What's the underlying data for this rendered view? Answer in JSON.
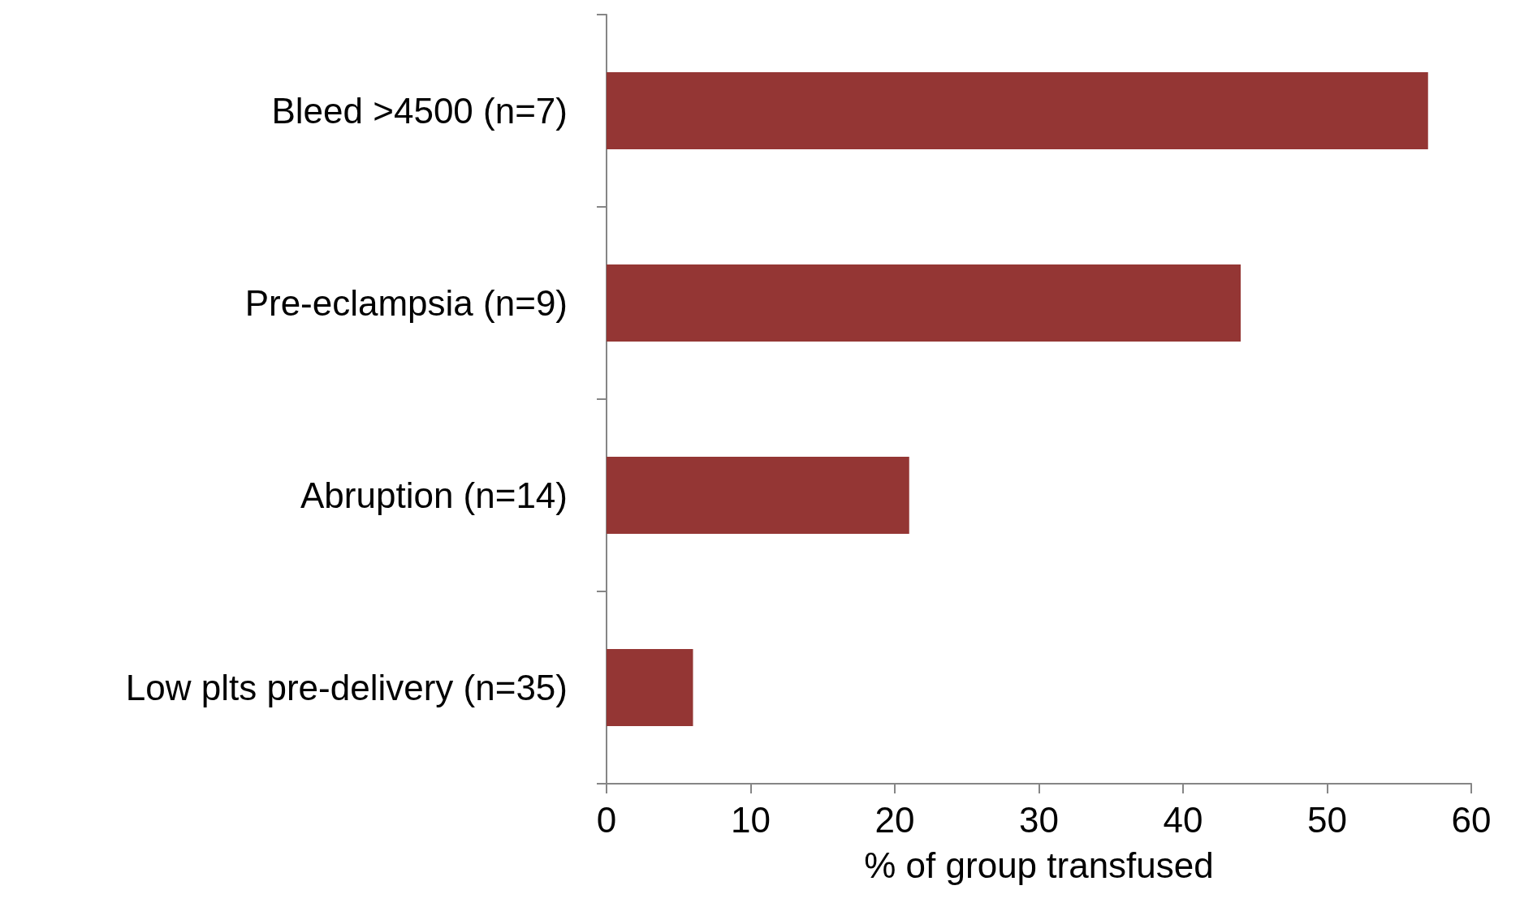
{
  "chart_data": {
    "type": "bar",
    "orientation": "horizontal",
    "xlabel": "% of group transfused",
    "categories": [
      "Bleed >4500 (n=7)",
      "Pre-eclampsia (n=9)",
      "Abruption (n=14)",
      "Low plts pre-delivery (n=35)"
    ],
    "values": [
      57,
      44,
      21,
      6
    ],
    "color": "#943634",
    "xlim": [
      0,
      60
    ],
    "xticks": [
      0,
      10,
      20,
      30,
      40,
      50,
      60
    ],
    "grid": false
  }
}
